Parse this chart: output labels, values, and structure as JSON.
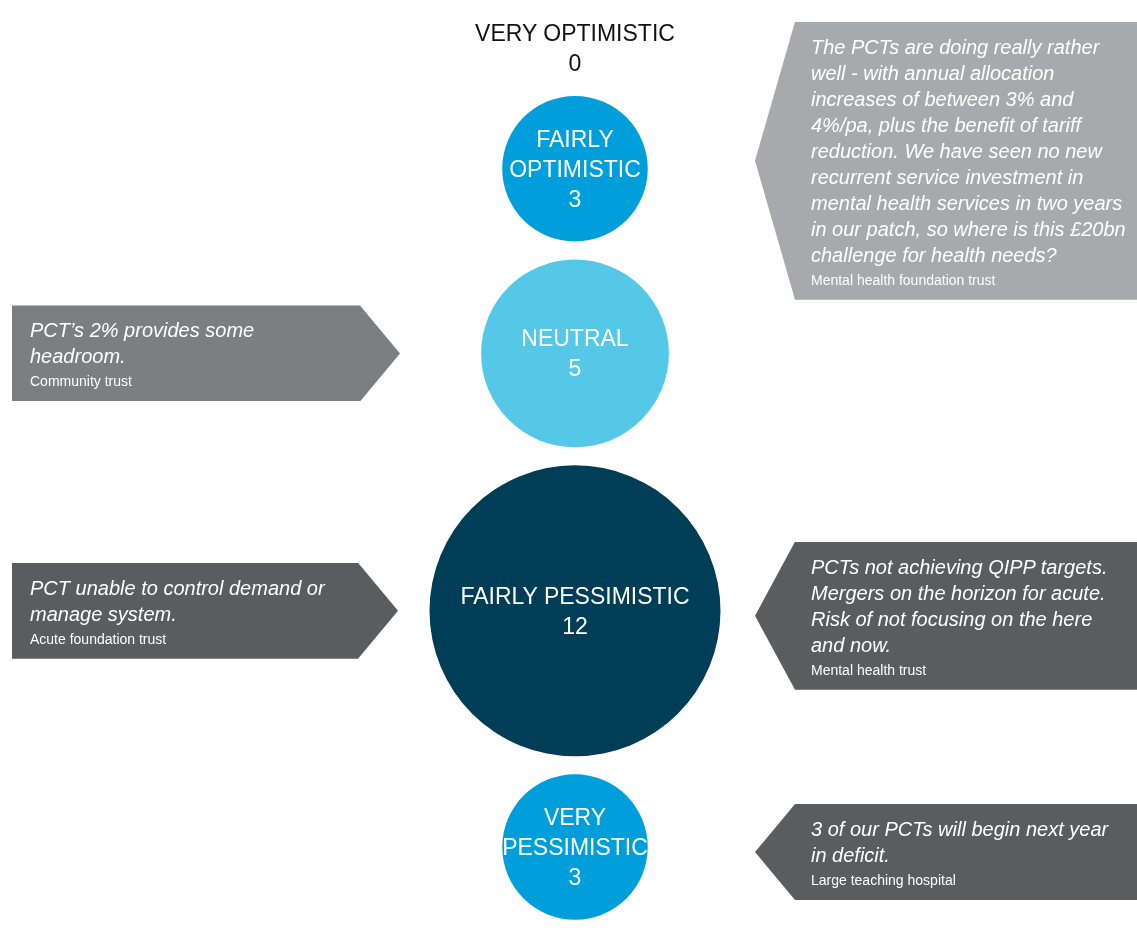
{
  "chart_data": {
    "type": "other",
    "categories": [
      "VERY OPTIMISTIC",
      "FAIRLY OPTIMISTIC",
      "NEUTRAL",
      "FAIRLY PESSIMISTIC",
      "VERY PESSIMISTIC"
    ],
    "values": [
      0,
      3,
      5,
      12,
      3
    ],
    "colors": [
      null,
      "#009fdb",
      "#55c8e8",
      "#003d57",
      "#009fdb"
    ],
    "data_labels": true,
    "annotations": [
      "The PCTs are doing really rather well - with annual allocation increases of between 3% and 4%/pa, plus the benefit of tariff reduction. We have seen no new recurrent service investment in mental health services in two years in our patch, so where is this £20bn challenge for health needs?",
      "Mental health foundation trust",
      "PCT’s 2% provides some headroom.",
      "Community trust",
      "PCT unable to control demand or manage system.",
      "Acute foundation trust",
      "PCTs not achieving QIPP targets. Mergers on the horizon for acute. Risk of not focusing on the here and now.",
      "Mental health trust",
      "3 of our PCTs will begin next year in deficit.",
      "Large teaching hospital"
    ]
  }
}
